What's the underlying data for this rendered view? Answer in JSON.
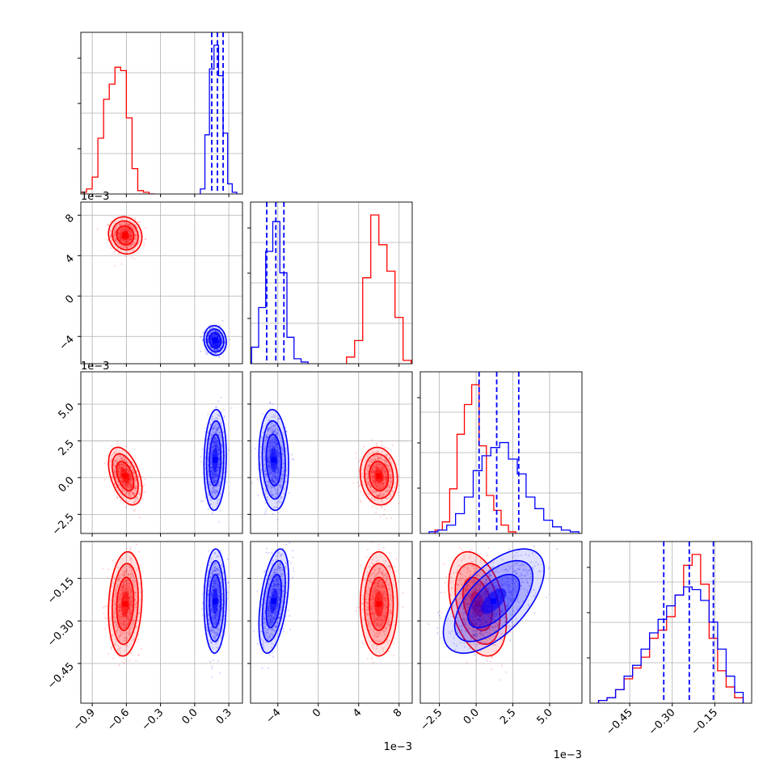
{
  "chart_data": {
    "type": "corner",
    "colors": {
      "red": "#ff0000",
      "blue": "#0000ff",
      "grid": "#b0b0b0"
    },
    "parameters": [
      {
        "index": 0,
        "range": [
          -1.0,
          0.42
        ],
        "ticks": [
          -0.9,
          -0.6,
          -0.3,
          0.0,
          0.3
        ],
        "tick_labels": [
          "−0.9",
          "−0.6",
          "−0.3",
          "0.0",
          "0.3"
        ],
        "offset": ""
      },
      {
        "index": 1,
        "range": [
          -0.0067,
          0.0093
        ],
        "ticks": [
          -0.004,
          0.0,
          0.004,
          0.008
        ],
        "tick_labels": [
          "−4",
          "0",
          "4",
          "8"
        ],
        "offset": "1e−3"
      },
      {
        "index": 2,
        "range": [
          -0.0038,
          0.0072
        ],
        "ticks": [
          -0.0025,
          0.0,
          0.0025,
          0.005
        ],
        "tick_labels": [
          "−2.5",
          "0.0",
          "2.5",
          "5.0"
        ],
        "offset": "1e−3"
      },
      {
        "index": 3,
        "range": [
          -0.59,
          -0.02
        ],
        "ticks": [
          -0.45,
          -0.3,
          -0.15
        ],
        "tick_labels": [
          "−0.45",
          "−0.30",
          "−0.15"
        ],
        "offset": ""
      }
    ],
    "quantiles_blue": [
      [
        0.15,
        0.2,
        0.25
      ],
      [
        -0.0051,
        -0.0042,
        -0.0034
      ],
      [
        0.0002,
        0.0014,
        0.0029
      ],
      [
        -0.33,
        -0.24,
        -0.155
      ]
    ],
    "series": [
      {
        "name": "",
        "color": "#ff0000",
        "marginals": [
          {
            "edges": [
              -1.0,
              -0.95,
              -0.9,
              -0.85,
              -0.8,
              -0.75,
              -0.7,
              -0.65,
              -0.6,
              -0.55,
              -0.5,
              -0.45,
              -0.4,
              -0.35
            ],
            "counts": [
              0.01,
              0.03,
              0.1,
              0.33,
              0.56,
              0.65,
              0.75,
              0.73,
              0.45,
              0.15,
              0.02,
              0.01,
              0.0
            ]
          },
          {
            "edges": [
              0.0028,
              0.0036,
              0.0044,
              0.0052,
              0.006,
              0.0068,
              0.0076,
              0.0084,
              0.0092
            ],
            "counts": [
              0.04,
              0.14,
              0.52,
              0.9,
              0.72,
              0.56,
              0.28,
              0.02
            ]
          },
          {
            "edges": [
              -0.0028,
              -0.0023,
              -0.0018,
              -0.0013,
              -0.0008,
              -0.0003,
              0.0002,
              0.0007,
              0.0012,
              0.0017,
              0.0022,
              0.0027
            ],
            "counts": [
              0.02,
              0.07,
              0.27,
              0.6,
              0.78,
              0.9,
              0.53,
              0.23,
              0.14,
              0.05,
              0.01
            ]
          },
          {
            "edges": [
              -0.56,
              -0.53,
              -0.5,
              -0.47,
              -0.44,
              -0.41,
              -0.38,
              -0.35,
              -0.32,
              -0.29,
              -0.26,
              -0.23,
              -0.2,
              -0.17,
              -0.14,
              -0.11,
              -0.08,
              -0.05
            ],
            "counts": [
              0.01,
              0.02,
              0.05,
              0.09,
              0.13,
              0.17,
              0.24,
              0.27,
              0.32,
              0.4,
              0.51,
              0.55,
              0.44,
              0.24,
              0.12,
              0.06,
              0.02
            ]
          }
        ],
        "means": [
          -0.61,
          0.006,
          0.0001,
          -0.24
        ],
        "sds": [
          0.06,
          0.00075,
          0.0008,
          0.075
        ]
      },
      {
        "name": "",
        "color": "#0000ff",
        "marginals": [
          {
            "edges": [
              0.05,
              0.09,
              0.13,
              0.17,
              0.21,
              0.25,
              0.29,
              0.33,
              0.37
            ],
            "counts": [
              0.03,
              0.35,
              0.74,
              0.88,
              0.7,
              0.36,
              0.06,
              0.01
            ]
          },
          {
            "edges": [
              -0.0066,
              -0.0059,
              -0.0052,
              -0.0045,
              -0.0038,
              -0.0031,
              -0.0024,
              -0.0017,
              -0.001
            ],
            "counts": [
              0.1,
              0.34,
              0.68,
              0.86,
              0.55,
              0.16,
              0.03,
              0.01
            ]
          },
          {
            "edges": [
              -0.0032,
              -0.0026,
              -0.002,
              -0.0014,
              -0.0008,
              -0.0002,
              0.0004,
              0.001,
              0.0016,
              0.0022,
              0.0028,
              0.0034,
              0.004,
              0.0046,
              0.0052,
              0.0058,
              0.0064,
              0.007
            ],
            "counts": [
              0.01,
              0.02,
              0.05,
              0.12,
              0.22,
              0.38,
              0.47,
              0.52,
              0.55,
              0.45,
              0.36,
              0.22,
              0.15,
              0.08,
              0.04,
              0.02,
              0.01
            ]
          },
          {
            "edges": [
              -0.56,
              -0.53,
              -0.5,
              -0.47,
              -0.44,
              -0.41,
              -0.38,
              -0.35,
              -0.32,
              -0.29,
              -0.26,
              -0.23,
              -0.2,
              -0.17,
              -0.14,
              -0.11,
              -0.08,
              -0.05
            ],
            "counts": [
              0.01,
              0.02,
              0.05,
              0.1,
              0.14,
              0.2,
              0.26,
              0.31,
              0.36,
              0.4,
              0.43,
              0.42,
              0.38,
              0.3,
              0.2,
              0.1,
              0.04
            ]
          }
        ],
        "means": [
          0.18,
          -0.0044,
          0.0012,
          -0.23
        ],
        "sds": [
          0.04,
          0.0006,
          0.0014,
          0.075
        ]
      }
    ],
    "correlations": {
      "red": {
        "1-0": -0.1,
        "2-0": -0.45,
        "2-1": -0.1,
        "3-0": 0.15,
        "3-1": 0.0,
        "3-2": -0.35
      },
      "blue": {
        "1-0": -0.1,
        "2-0": 0.1,
        "2-1": -0.1,
        "3-0": 0.05,
        "3-1": 0.45,
        "3-2": 0.6
      }
    }
  }
}
